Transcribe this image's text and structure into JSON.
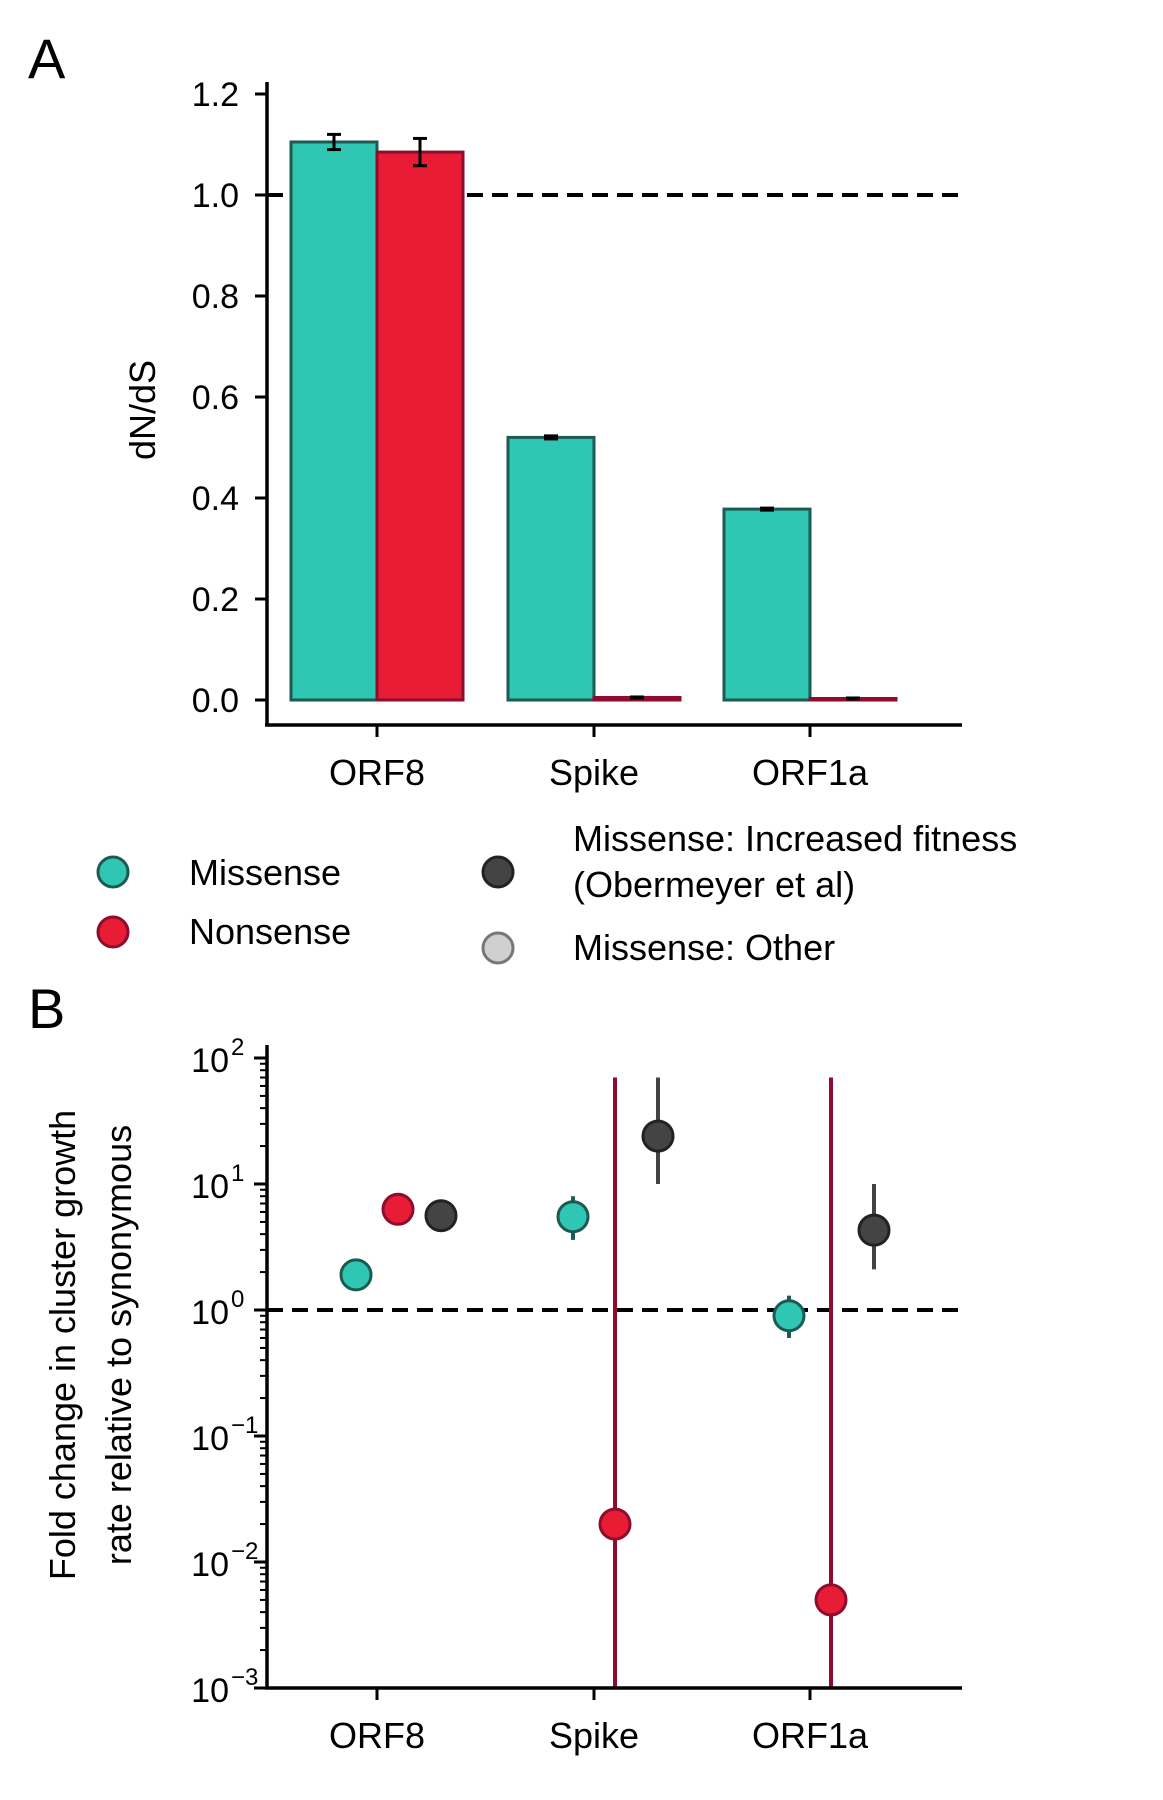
{
  "panels": {
    "a_label": "A",
    "b_label": "B"
  },
  "colors": {
    "missense": "#2fc6b4",
    "missense_edge": "#1d5a52",
    "nonsense": "#e81c34",
    "nonsense_edge": "#8e0c2e",
    "increased_fitness": "#444444",
    "increased_fitness_edge": "#222222",
    "other": "#d0d0d0",
    "other_edge": "#777777"
  },
  "legend": {
    "missense": "Missense",
    "nonsense": "Nonsense",
    "increased_fitness_line1": "Missense: Increased fitness",
    "increased_fitness_line2": "(Obermeyer et al)",
    "other": "Missense: Other"
  },
  "chart_data": [
    {
      "type": "bar",
      "title": "",
      "ylabel": "dN/dS",
      "xlabel": "",
      "categories": [
        "ORF8",
        "Spike",
        "ORF1a"
      ],
      "ylim": [
        0,
        1.22
      ],
      "yticks": [
        0.0,
        0.2,
        0.4,
        0.6,
        0.8,
        1.0,
        1.2
      ],
      "ytick_labels": [
        "0.0",
        "0.2",
        "0.4",
        "0.6",
        "0.8",
        "1.0",
        "1.2"
      ],
      "reference_line": 1.0,
      "grid": false,
      "series": [
        {
          "name": "Missense",
          "values": [
            1.105,
            0.52,
            0.378
          ],
          "err_low": [
            0.015,
            0.003,
            0.002
          ],
          "err_high": [
            0.015,
            0.003,
            0.002
          ]
        },
        {
          "name": "Nonsense",
          "values": [
            1.085,
            0.005,
            0.003
          ],
          "err_low": [
            0.027,
            0.001,
            0.001
          ],
          "err_high": [
            0.027,
            0.001,
            0.001
          ]
        }
      ]
    },
    {
      "type": "scatter",
      "title": "",
      "ylabel_line1": "Fold change in cluster growth",
      "ylabel_line2": "rate relative to synonymous",
      "xlabel": "",
      "yscale": "log",
      "categories": [
        "ORF8",
        "Spike",
        "ORF1a"
      ],
      "ylim": [
        0.001,
        120
      ],
      "ytick_exponents": [
        2,
        1,
        0,
        -1,
        -2,
        -3
      ],
      "ytick_base": "10",
      "reference_line": 1.0,
      "grid": false,
      "series": [
        {
          "name": "Missense",
          "y": [
            1.9,
            5.5,
            0.9
          ],
          "y_low": [
            null,
            3.6,
            0.6
          ],
          "y_high": [
            null,
            8.0,
            1.3
          ]
        },
        {
          "name": "Nonsense",
          "y": [
            6.3,
            0.02,
            0.005
          ],
          "y_low": [
            null,
            0.001,
            0.001
          ],
          "y_high": [
            null,
            70,
            70
          ]
        },
        {
          "name": "Missense: Increased fitness (Obermeyer et al)",
          "y": [
            5.6,
            24,
            4.3
          ],
          "y_low": [
            null,
            10,
            2.1
          ],
          "y_high": [
            null,
            70,
            10
          ]
        }
      ]
    }
  ]
}
